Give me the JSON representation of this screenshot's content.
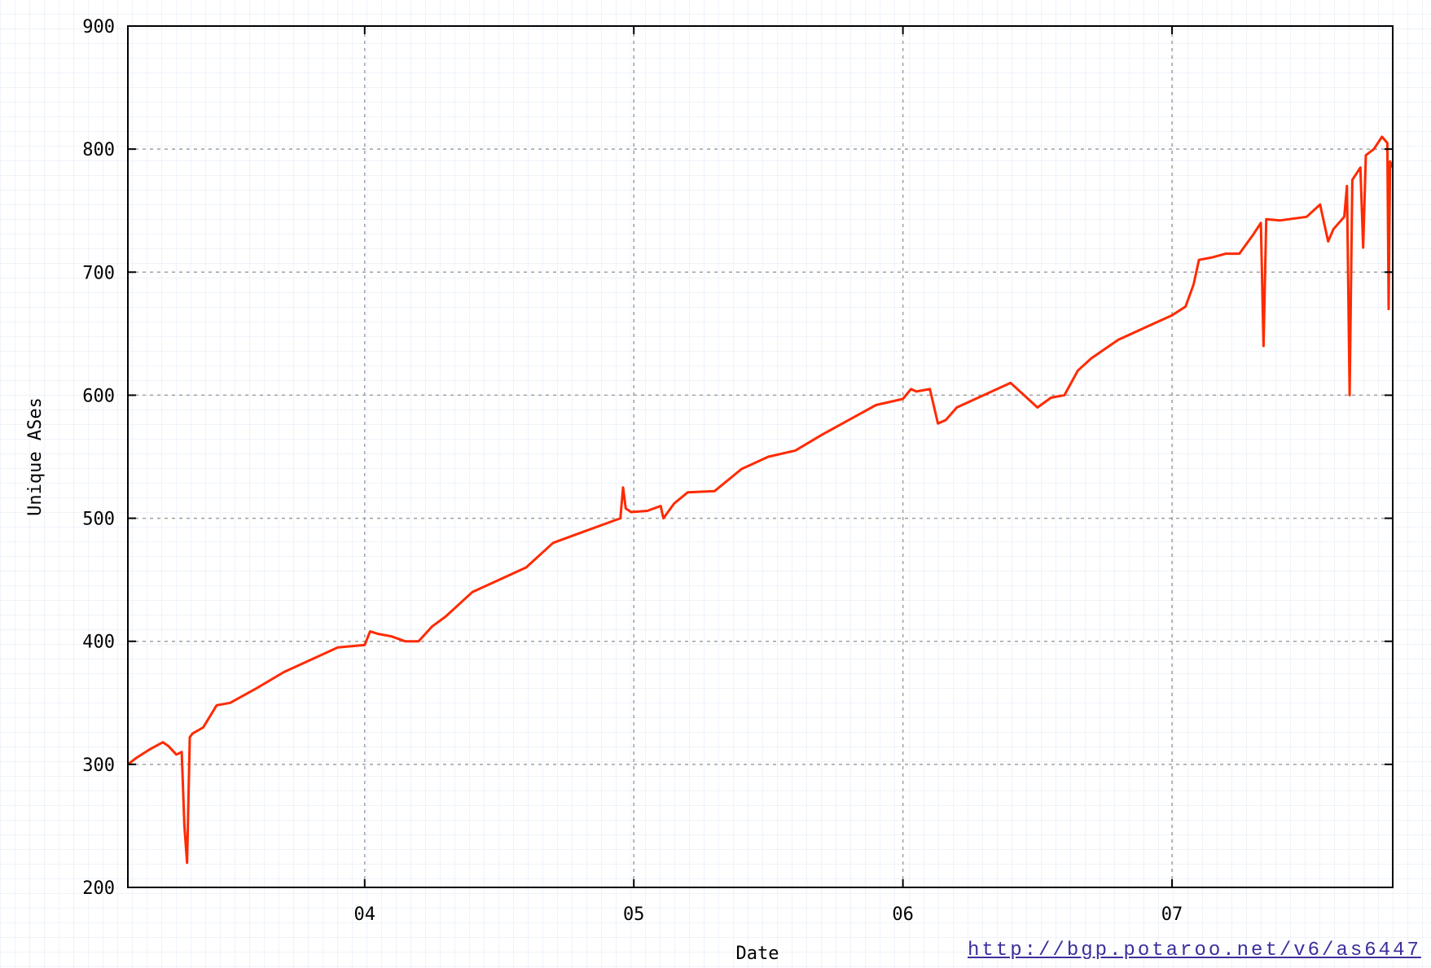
{
  "source_url": "http://bgp.potaroo.net/v6/as6447",
  "colors": {
    "line": "#ff2a00",
    "grid": "#a0a0a0",
    "axis": "#000000",
    "link": "#3a2f9c"
  },
  "chart_data": {
    "type": "line",
    "title": "",
    "xlabel": "Date",
    "ylabel": "Unique ASes",
    "xlim": [
      2003.12,
      2007.82
    ],
    "ylim": [
      200,
      900
    ],
    "grid": true,
    "x_ticks": [
      {
        "value": 2004,
        "label": "04"
      },
      {
        "value": 2005,
        "label": "05"
      },
      {
        "value": 2006,
        "label": "06"
      },
      {
        "value": 2007,
        "label": "07"
      }
    ],
    "y_ticks": [
      200,
      300,
      400,
      500,
      600,
      700,
      800,
      900
    ],
    "series": [
      {
        "x": [
          2003.12,
          2003.15,
          2003.2,
          2003.25,
          2003.27,
          2003.3,
          2003.32,
          2003.33,
          2003.34,
          2003.35,
          2003.36,
          2003.4,
          2003.45,
          2003.5,
          2003.6,
          2003.7,
          2003.8,
          2003.9,
          2004.0,
          2004.02,
          2004.05,
          2004.1,
          2004.15,
          2004.2,
          2004.25,
          2004.3,
          2004.4,
          2004.5,
          2004.6,
          2004.7,
          2004.8,
          2004.9,
          2004.95,
          2004.96,
          2004.97,
          2004.99,
          2005.05,
          2005.1,
          2005.11,
          2005.15,
          2005.2,
          2005.3,
          2005.4,
          2005.5,
          2005.6,
          2005.7,
          2005.8,
          2005.9,
          2006.0,
          2006.03,
          2006.05,
          2006.1,
          2006.13,
          2006.16,
          2006.2,
          2006.3,
          2006.4,
          2006.45,
          2006.5,
          2006.55,
          2006.6,
          2006.65,
          2006.7,
          2006.8,
          2006.9,
          2007.0,
          2007.05,
          2007.08,
          2007.1,
          2007.15,
          2007.2,
          2007.25,
          2007.3,
          2007.33,
          2007.34,
          2007.35,
          2007.4,
          2007.5,
          2007.55,
          2007.58,
          2007.6,
          2007.62,
          2007.64,
          2007.65,
          2007.66,
          2007.67,
          2007.7,
          2007.71,
          2007.72,
          2007.75,
          2007.78,
          2007.8,
          2007.805,
          2007.81,
          2007.82
        ],
        "y": [
          300,
          305,
          312,
          318,
          315,
          308,
          310,
          250,
          220,
          322,
          325,
          330,
          348,
          350,
          362,
          375,
          385,
          395,
          397,
          408,
          406,
          404,
          400,
          400,
          412,
          420,
          440,
          450,
          460,
          480,
          488,
          496,
          500,
          525,
          508,
          505,
          506,
          510,
          500,
          512,
          521,
          522,
          540,
          550,
          555,
          568,
          580,
          592,
          597,
          605,
          603,
          605,
          577,
          580,
          590,
          600,
          610,
          600,
          590,
          598,
          600,
          620,
          630,
          645,
          655,
          665,
          672,
          690,
          710,
          712,
          715,
          715,
          730,
          740,
          640,
          743,
          742,
          745,
          755,
          725,
          735,
          740,
          745,
          770,
          600,
          775,
          785,
          720,
          795,
          800,
          810,
          805,
          670,
          790,
          785
        ]
      }
    ]
  }
}
